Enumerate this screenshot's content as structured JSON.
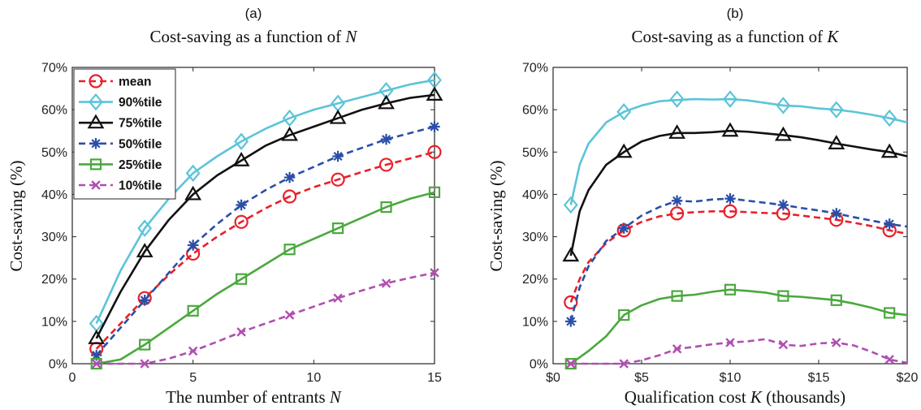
{
  "chart_data": [
    {
      "type": "line",
      "panel_label": "(a)",
      "title_prefix": "Cost-saving as a function of ",
      "title_var": "N",
      "xlabel_prefix": "The number of entrants ",
      "xlabel_var": "N",
      "ylabel": "Cost-saving (%)",
      "xlim": [
        0,
        15
      ],
      "ylim": [
        0,
        70
      ],
      "xticks": [
        0,
        5,
        10,
        15
      ],
      "xtick_labels": [
        "0",
        "5",
        "10",
        "15"
      ],
      "yticks": [
        0,
        10,
        20,
        30,
        40,
        50,
        60,
        70
      ],
      "ytick_labels": [
        "0%",
        "10%",
        "20%",
        "30%",
        "40%",
        "50%",
        "60%",
        "70%"
      ],
      "legend": "top-left",
      "series": [
        {
          "name": "mean",
          "color": "#e8202a",
          "dash": "dashed",
          "marker": "circle",
          "x": [
            1,
            3,
            5,
            7,
            9,
            11,
            13,
            15
          ],
          "y": [
            3.5,
            15.5,
            26,
            33.5,
            39.5,
            43.5,
            47,
            50
          ],
          "line_x": [
            1,
            2,
            3,
            4,
            5,
            6,
            7,
            8,
            9,
            10,
            11,
            12,
            13,
            14,
            15
          ],
          "line_y": [
            3.5,
            9.5,
            15.5,
            21,
            26,
            30,
            33.5,
            36.7,
            39.5,
            41.7,
            43.5,
            45.3,
            47,
            48.5,
            50
          ]
        },
        {
          "name": "90%tile",
          "color": "#5bc4d8",
          "dash": "solid",
          "marker": "diamond",
          "x": [
            1,
            3,
            5,
            7,
            9,
            11,
            13,
            15
          ],
          "y": [
            9.5,
            32,
            45,
            52.5,
            58,
            61.5,
            64.5,
            67
          ],
          "line_x": [
            1,
            2,
            3,
            4,
            5,
            6,
            7,
            8,
            9,
            10,
            11,
            12,
            13,
            14,
            15
          ],
          "line_y": [
            9.5,
            22,
            32,
            39,
            45,
            49,
            52.5,
            55.5,
            58,
            60,
            61.5,
            63,
            64.5,
            66,
            67
          ]
        },
        {
          "name": "75%tile",
          "color": "#111111",
          "dash": "solid",
          "marker": "triangle",
          "x": [
            1,
            3,
            5,
            7,
            9,
            11,
            13,
            15
          ],
          "y": [
            6,
            26.5,
            40,
            48,
            54,
            58,
            61.5,
            63.5
          ],
          "line_x": [
            1,
            2,
            3,
            4,
            5,
            6,
            7,
            8,
            9,
            10,
            11,
            12,
            13,
            14,
            15
          ],
          "line_y": [
            6,
            17,
            26.5,
            34,
            40,
            44.5,
            48,
            51.5,
            54,
            56,
            58,
            60,
            61.5,
            62.8,
            63.5
          ]
        },
        {
          "name": "50%tile",
          "color": "#2b4fa8",
          "dash": "dashed",
          "marker": "star",
          "x": [
            1,
            3,
            5,
            7,
            9,
            11,
            13,
            15
          ],
          "y": [
            2,
            15,
            28,
            37.5,
            44,
            49,
            53,
            56
          ],
          "line_x": [
            1,
            2,
            3,
            4,
            5,
            6,
            7,
            8,
            9,
            10,
            11,
            12,
            13,
            14,
            15
          ],
          "line_y": [
            2,
            8.5,
            15,
            21.5,
            28,
            33,
            37.5,
            41,
            44,
            46.5,
            49,
            51,
            53,
            54.5,
            56
          ]
        },
        {
          "name": "25%tile",
          "color": "#4aa83d",
          "dash": "solid",
          "marker": "square",
          "x": [
            1,
            3,
            5,
            7,
            9,
            11,
            13,
            15
          ],
          "y": [
            0,
            4.5,
            12.5,
            20,
            27,
            32,
            37,
            40.5
          ],
          "line_x": [
            1,
            2,
            3,
            4,
            5,
            6,
            7,
            8,
            9,
            10,
            11,
            12,
            13,
            14,
            15
          ],
          "line_y": [
            0,
            1,
            4.5,
            8.5,
            12.5,
            16.5,
            20,
            23.5,
            27,
            29.5,
            32,
            34.5,
            37,
            39,
            40.5
          ]
        },
        {
          "name": "10%tile",
          "color": "#b04fb0",
          "dash": "dashed",
          "marker": "x",
          "x": [
            1,
            3,
            5,
            7,
            9,
            11,
            13,
            15
          ],
          "y": [
            0,
            0,
            3,
            7.5,
            11.5,
            15.5,
            19,
            21.5
          ],
          "line_x": [
            1,
            2,
            3,
            4,
            5,
            6,
            7,
            8,
            9,
            10,
            11,
            12,
            13,
            14,
            15
          ],
          "line_y": [
            0,
            0,
            0,
            1.2,
            3,
            5.2,
            7.5,
            9.5,
            11.5,
            13.5,
            15.5,
            17.3,
            19,
            20.3,
            21.5
          ]
        }
      ]
    },
    {
      "type": "line",
      "panel_label": "(b)",
      "title_prefix": "Cost-saving as a function of ",
      "title_var": "K",
      "xlabel_prefix": "Qualification cost ",
      "xlabel_var": "K",
      "xlabel_suffix": " (thousands)",
      "ylabel": "Cost-saving (%)",
      "xlim": [
        0,
        20
      ],
      "ylim": [
        0,
        70
      ],
      "xticks": [
        0,
        5,
        10,
        15,
        20
      ],
      "xtick_labels": [
        "$0",
        "$5",
        "$10",
        "$15",
        "$20"
      ],
      "yticks": [
        0,
        10,
        20,
        30,
        40,
        50,
        60,
        70
      ],
      "ytick_labels": [
        "0%",
        "10%",
        "20%",
        "30%",
        "40%",
        "50%",
        "60%",
        "70%"
      ],
      "series": [
        {
          "name": "mean",
          "color": "#e8202a",
          "dash": "dashed",
          "marker": "circle",
          "x": [
            1,
            4,
            7,
            10,
            13,
            16,
            19
          ],
          "y": [
            14.5,
            31.5,
            35.5,
            36,
            35.5,
            34,
            31.5
          ],
          "line_x": [
            1,
            1.5,
            2,
            3,
            4,
            5,
            6,
            7,
            8,
            9,
            10,
            11,
            12,
            13,
            14,
            15,
            16,
            17,
            18,
            19,
            20
          ],
          "line_y": [
            14.5,
            20,
            24,
            28.5,
            31.5,
            33.5,
            34.8,
            35.5,
            35.8,
            36,
            36,
            35.8,
            35.6,
            35.5,
            35,
            34.5,
            34,
            33.3,
            32.5,
            31.5,
            30.7
          ]
        },
        {
          "name": "90%tile",
          "color": "#5bc4d8",
          "dash": "solid",
          "marker": "diamond",
          "x": [
            1,
            4,
            7,
            10,
            13,
            16,
            19
          ],
          "y": [
            37.5,
            59.5,
            62.5,
            62.5,
            61,
            60,
            58
          ],
          "line_x": [
            1,
            1.5,
            2,
            3,
            4,
            5,
            6,
            7,
            8,
            9,
            10,
            11,
            12,
            13,
            14,
            15,
            16,
            17,
            18,
            19,
            20
          ],
          "line_y": [
            37.5,
            47,
            52,
            57,
            59.5,
            61,
            62,
            62.3,
            62.5,
            62.4,
            62.5,
            62.2,
            61.6,
            61,
            60.8,
            60.3,
            60,
            59.5,
            58.8,
            58,
            57
          ]
        },
        {
          "name": "75%tile",
          "color": "#111111",
          "dash": "solid",
          "marker": "triangle",
          "x": [
            1,
            4,
            7,
            10,
            13,
            16,
            19
          ],
          "y": [
            25.5,
            50,
            54.5,
            55,
            54,
            52,
            50
          ],
          "line_x": [
            1,
            1.5,
            2,
            3,
            4,
            5,
            6,
            7,
            8,
            9,
            10,
            11,
            12,
            13,
            14,
            15,
            16,
            17,
            18,
            19,
            20
          ],
          "line_y": [
            25.5,
            36,
            41,
            47,
            50,
            52.5,
            53.8,
            54.5,
            54.5,
            54.7,
            55,
            54.8,
            54.4,
            54,
            53.5,
            52.8,
            52,
            51.3,
            50.6,
            50,
            49
          ]
        },
        {
          "name": "50%tile",
          "color": "#2b4fa8",
          "dash": "dashed",
          "marker": "star",
          "x": [
            1,
            4,
            7,
            10,
            13,
            16,
            19
          ],
          "y": [
            10,
            32,
            38.5,
            39,
            37.5,
            35.5,
            33
          ],
          "line_x": [
            1,
            1.5,
            2,
            3,
            4,
            5,
            6,
            7,
            8,
            9,
            10,
            11,
            12,
            13,
            14,
            15,
            16,
            17,
            18,
            19,
            20
          ],
          "line_y": [
            10,
            18,
            23,
            29,
            32,
            35,
            37,
            38.5,
            38.3,
            38.8,
            39,
            38.5,
            38,
            37.5,
            36.8,
            36.2,
            35.5,
            34.6,
            33.8,
            33,
            32.4
          ]
        },
        {
          "name": "25%tile",
          "color": "#4aa83d",
          "dash": "solid",
          "marker": "square",
          "x": [
            1,
            4,
            7,
            10,
            13,
            16,
            19
          ],
          "y": [
            0,
            11.5,
            16,
            17.5,
            16,
            15,
            12
          ],
          "line_x": [
            1,
            1.5,
            2,
            3,
            4,
            5,
            6,
            7,
            8,
            9,
            10,
            11,
            12,
            13,
            14,
            15,
            16,
            17,
            18,
            19,
            20
          ],
          "line_y": [
            0,
            1.5,
            3,
            6.5,
            11.5,
            13.8,
            15.3,
            16,
            16.3,
            17,
            17.5,
            17.2,
            16.8,
            16,
            15.8,
            15.4,
            15,
            14.2,
            13.2,
            12,
            11.5
          ]
        },
        {
          "name": "10%tile",
          "color": "#b04fb0",
          "dash": "dashed",
          "marker": "x",
          "x": [
            1,
            4,
            7,
            10,
            13,
            16,
            19
          ],
          "y": [
            0,
            0,
            3.5,
            5,
            4.5,
            5,
            1
          ],
          "line_x": [
            1,
            1.5,
            2,
            3,
            4,
            5,
            6,
            7,
            8,
            9,
            10,
            11,
            12,
            13,
            14,
            15,
            16,
            17,
            18,
            19,
            20
          ],
          "line_y": [
            0,
            0,
            0,
            0,
            0,
            0.8,
            2,
            3.5,
            4,
            4.6,
            5,
            5.3,
            5.8,
            4.5,
            4.2,
            4.8,
            5,
            4.3,
            2.8,
            1,
            0.2
          ]
        }
      ]
    }
  ]
}
